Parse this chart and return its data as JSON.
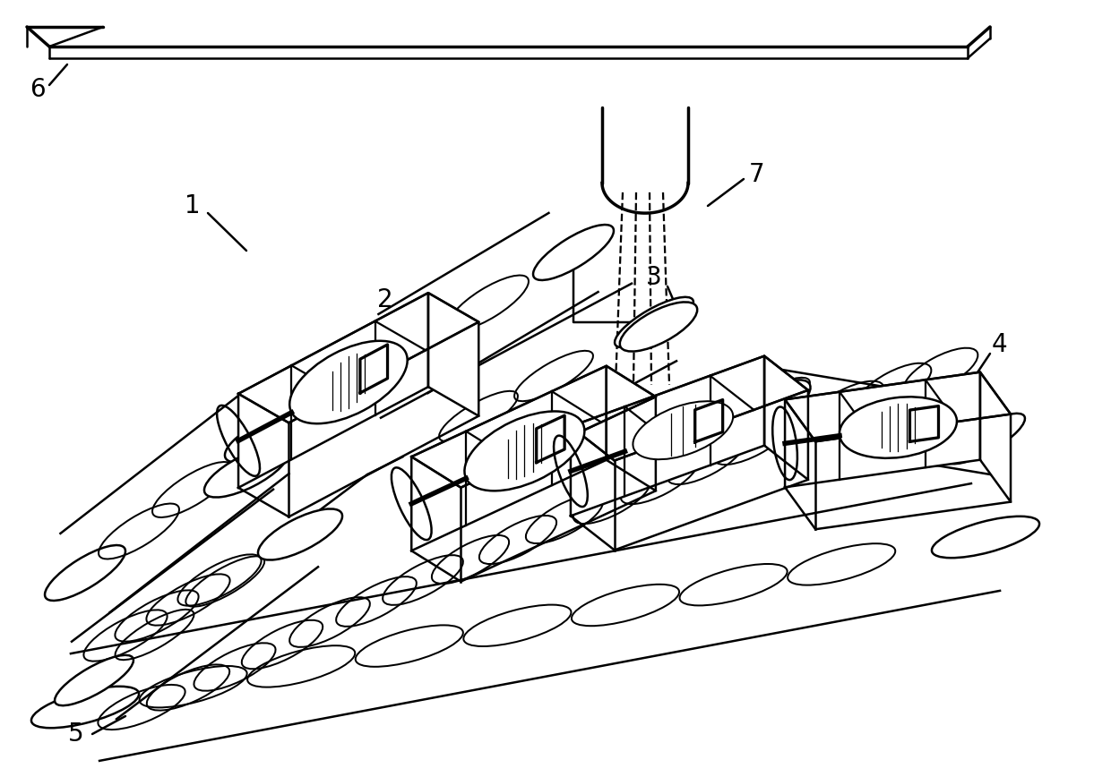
{
  "background_color": "#ffffff",
  "line_color": "#000000",
  "lw": 1.8,
  "lw_thick": 2.5,
  "lw_thin": 1.0,
  "label_fontsize": 20,
  "figsize": [
    12.4,
    8.68
  ],
  "dpi": 100
}
